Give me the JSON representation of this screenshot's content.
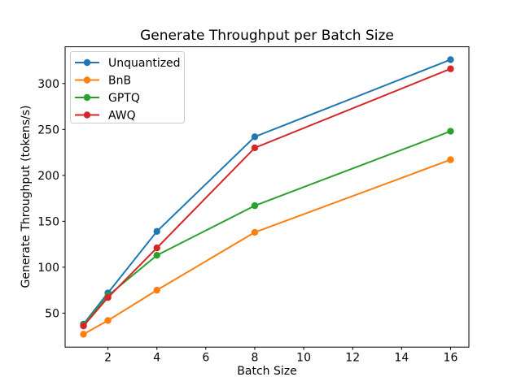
{
  "chart_data": {
    "type": "line",
    "title": "Generate Throughput per Batch Size",
    "xlabel": "Batch Size",
    "ylabel": "Generate Throughput (tokens/s)",
    "x": [
      1,
      2,
      4,
      8,
      16
    ],
    "series": [
      {
        "name": "Unquantized",
        "color": "#1f77b4",
        "values": [
          38,
          72,
          139,
          242,
          326
        ]
      },
      {
        "name": "BnB",
        "color": "#ff7f0e",
        "values": [
          27,
          42,
          75,
          138,
          217
        ]
      },
      {
        "name": "GPTQ",
        "color": "#2ca02c",
        "values": [
          37,
          69,
          113,
          167,
          248
        ]
      },
      {
        "name": "AWQ",
        "color": "#d62728",
        "values": [
          36,
          67,
          121,
          230,
          316
        ]
      }
    ],
    "x_ticks": [
      2,
      4,
      6,
      8,
      10,
      12,
      14,
      16
    ],
    "y_ticks": [
      50,
      100,
      150,
      200,
      250,
      300
    ],
    "xlim": [
      0.25,
      16.75
    ],
    "ylim": [
      13,
      340
    ],
    "grid": false,
    "marker": "o",
    "legend_position": "upper left",
    "axis_color": "#000000",
    "background_color": "#ffffff",
    "legend_border_color": "#cccccc"
  }
}
